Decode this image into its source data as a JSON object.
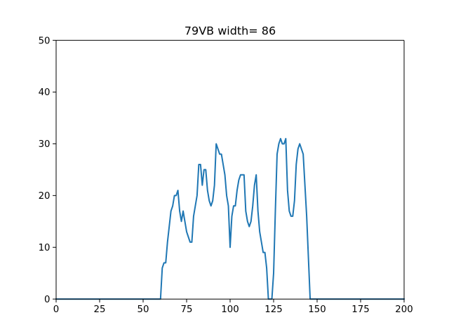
{
  "chart_data": {
    "type": "line",
    "title": "79VB width= 86",
    "xlabel": "",
    "ylabel": "",
    "xlim": [
      0,
      200
    ],
    "ylim": [
      0,
      50
    ],
    "xticks": [
      0,
      25,
      50,
      75,
      100,
      125,
      150,
      175,
      200
    ],
    "yticks": [
      0,
      10,
      20,
      30,
      40,
      50
    ],
    "grid": false,
    "series": [
      {
        "color": "#1f77b4",
        "x": [
          0,
          60,
          61,
          62,
          63,
          64,
          65,
          66,
          67,
          68,
          69,
          70,
          71,
          72,
          73,
          74,
          75,
          76,
          77,
          78,
          79,
          80,
          81,
          82,
          83,
          84,
          85,
          86,
          87,
          88,
          89,
          90,
          91,
          92,
          93,
          94,
          95,
          96,
          97,
          98,
          99,
          100,
          101,
          102,
          103,
          104,
          105,
          106,
          107,
          108,
          109,
          110,
          111,
          112,
          113,
          114,
          115,
          116,
          117,
          118,
          119,
          120,
          121,
          122,
          123,
          124,
          125,
          126,
          127,
          128,
          129,
          130,
          131,
          132,
          133,
          134,
          135,
          136,
          137,
          138,
          139,
          140,
          141,
          142,
          143,
          144,
          145,
          146,
          147,
          200
        ],
        "y": [
          0,
          0,
          6,
          7,
          7,
          11,
          14,
          17,
          18,
          20,
          20,
          21,
          17,
          15,
          17,
          15,
          13,
          12,
          11,
          11,
          16,
          18,
          20,
          26,
          26,
          22,
          25,
          25,
          21,
          19,
          18,
          19,
          22,
          30,
          29,
          28,
          28,
          26,
          24,
          20,
          18,
          10,
          16,
          18,
          18,
          21,
          23,
          24,
          24,
          24,
          17,
          15,
          14,
          15,
          18,
          22,
          24,
          17,
          13,
          11,
          9,
          9,
          6,
          0,
          0,
          0,
          5,
          17,
          28,
          30,
          31,
          30,
          30,
          31,
          21,
          17,
          16,
          16,
          19,
          26,
          29,
          30,
          29,
          28,
          22,
          16,
          8,
          0,
          0,
          0
        ]
      }
    ]
  }
}
